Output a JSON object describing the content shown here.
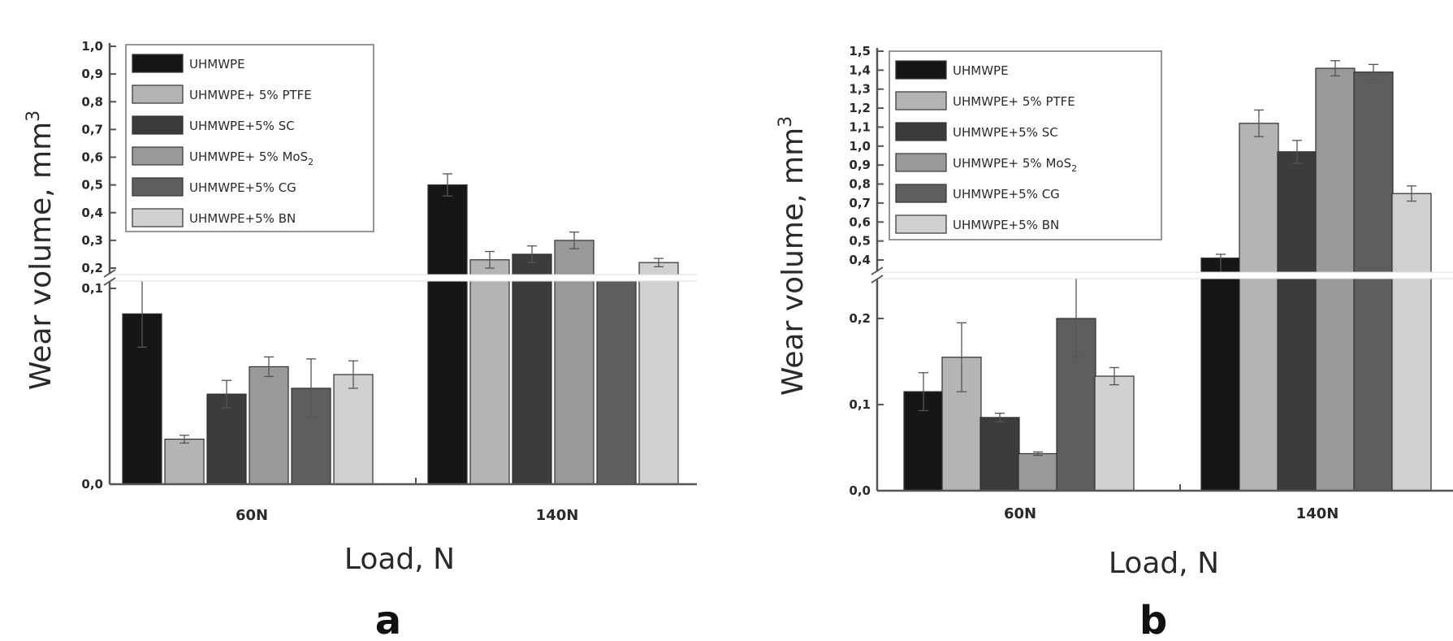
{
  "colors": {
    "UHMWPE": "#161616",
    "UHMWPE+ 5% PTFE": "#b4b4b4",
    "UHMWPE+5% SC": "#3c3c3c",
    "UHMWPE+ 5% MoS2": "#999999",
    "UHMWPE+5% CG": "#5e5e5e",
    "UHMWPE+5% BN": "#d0d0d0"
  },
  "chart_data": [
    {
      "type": "bar",
      "panel_label": "a",
      "xlabel": "Load, N",
      "ylabel": "Wear volume, mm",
      "ylabel_sup": "3",
      "categories": [
        "60N",
        "140N"
      ],
      "y_axis_broken": true,
      "ylim_lower": [
        0.0,
        0.1
      ],
      "ylim_upper": [
        0.2,
        1.0
      ],
      "yticks_lower": [
        "0,0",
        "0,1"
      ],
      "yticks_upper": [
        "0,2",
        "0,3",
        "0,4",
        "0,5",
        "0,6",
        "0,7",
        "0,8",
        "0,9",
        "1,0"
      ],
      "legend_position": "top-left",
      "series": [
        {
          "name": "UHMWPE",
          "values": [
            0.087,
            0.5
          ],
          "errors": [
            0.017,
            0.04
          ]
        },
        {
          "name": "UHMWPE+ 5% PTFE",
          "values": [
            0.023,
            0.23
          ],
          "errors": [
            0.002,
            0.03
          ]
        },
        {
          "name": "UHMWPE+5% SC",
          "values": [
            0.046,
            0.25
          ],
          "errors": [
            0.007,
            0.03
          ]
        },
        {
          "name": "UHMWPE+ 5% MoS",
          "name_subscript": "2",
          "values": [
            0.06,
            0.3
          ],
          "errors": [
            0.005,
            0.03
          ]
        },
        {
          "name": "UHMWPE+5% CG",
          "values": [
            0.049,
            0.17
          ],
          "errors": [
            0.015,
            0.005
          ]
        },
        {
          "name": "UHMWPE+5% BN",
          "values": [
            0.056,
            0.22
          ],
          "errors": [
            0.007,
            0.015
          ]
        }
      ]
    },
    {
      "type": "bar",
      "panel_label": "b",
      "xlabel": "Load, N",
      "ylabel": "Wear volume, mm",
      "ylabel_sup": "3",
      "categories": [
        "60N",
        "140N"
      ],
      "y_axis_broken": true,
      "ylim_lower": [
        0.0,
        0.2
      ],
      "ylim_upper": [
        0.4,
        1.5
      ],
      "yticks_lower": [
        "0,0",
        "0,1",
        "0,2"
      ],
      "yticks_upper": [
        "0,4",
        "0,5",
        "0,6",
        "0,7",
        "0,8",
        "0,9",
        "1,0",
        "1,1",
        "1,2",
        "1,3",
        "1,4",
        "1,5"
      ],
      "legend_position": "top-left",
      "series": [
        {
          "name": "UHMWPE",
          "values": [
            0.115,
            0.41
          ],
          "errors": [
            0.022,
            0.02
          ]
        },
        {
          "name": "UHMWPE+ 5% PTFE",
          "values": [
            0.155,
            1.12
          ],
          "errors": [
            0.04,
            0.07
          ]
        },
        {
          "name": "UHMWPE+5% SC",
          "values": [
            0.085,
            0.97
          ],
          "errors": [
            0.005,
            0.06
          ]
        },
        {
          "name": "UHMWPE+ 5% MoS",
          "name_subscript": "2",
          "values": [
            0.043,
            1.41
          ],
          "errors": [
            0.002,
            0.04
          ]
        },
        {
          "name": "UHMWPE+5% CG",
          "values": [
            0.2,
            1.39
          ],
          "errors": [
            0.045,
            0.04
          ]
        },
        {
          "name": "UHMWPE+5% BN",
          "values": [
            0.133,
            0.75
          ],
          "errors": [
            0.01,
            0.04
          ]
        }
      ]
    }
  ]
}
